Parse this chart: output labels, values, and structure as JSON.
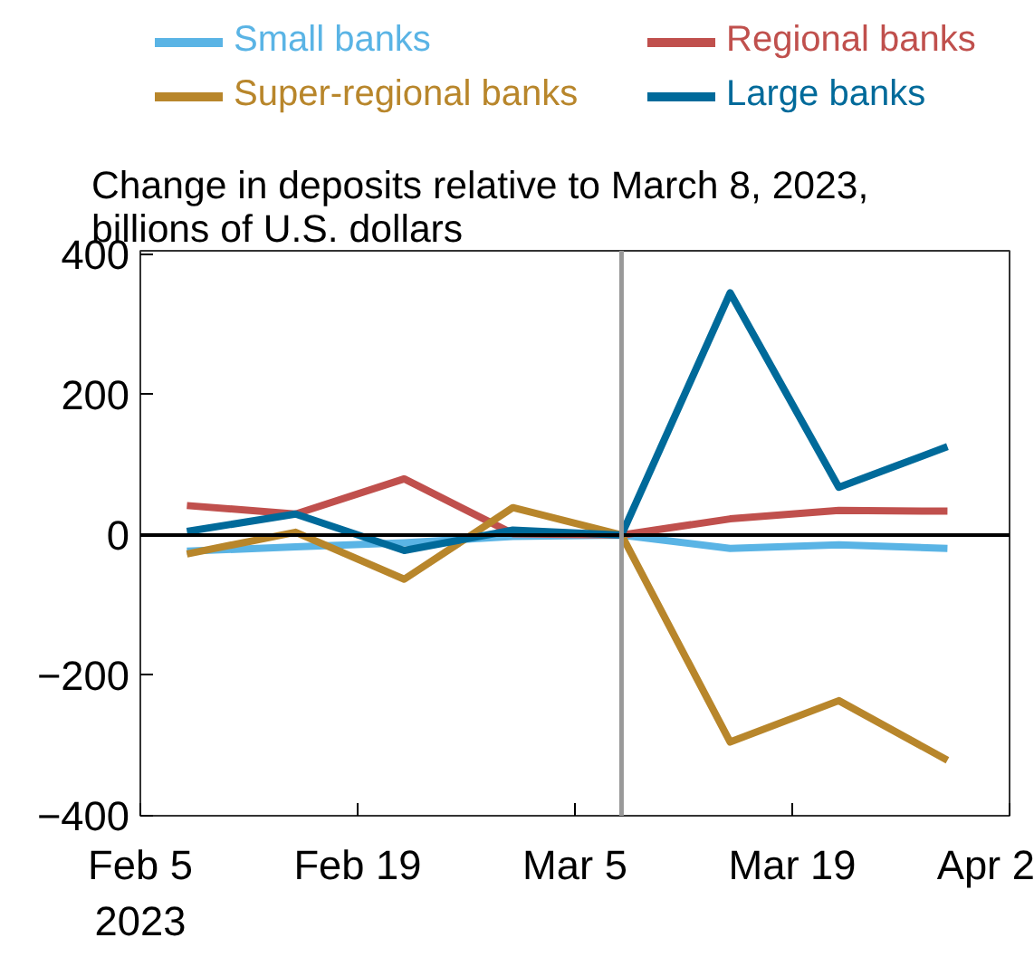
{
  "chart_data": {
    "type": "line",
    "title": "Change in deposits relative to March 8, 2023, billions of U.S. dollars",
    "x": [
      "2023-02-08",
      "2023-02-15",
      "2023-02-22",
      "2023-03-01",
      "2023-03-08",
      "2023-03-15",
      "2023-03-22",
      "2023-03-29"
    ],
    "series": [
      {
        "name": "Small banks",
        "color": "#5ab4e5",
        "values": [
          -23,
          -17,
          -11,
          -2,
          0,
          -19,
          -14,
          -19
        ]
      },
      {
        "name": "Regional banks",
        "color": "#c0504d",
        "values": [
          42,
          30,
          80,
          2,
          0,
          23,
          35,
          34
        ]
      },
      {
        "name": "Super-regional banks",
        "color": "#b8862b",
        "values": [
          -27,
          4,
          -63,
          39,
          0,
          -295,
          -236,
          -321
        ]
      },
      {
        "name": "Large banks",
        "color": "#006a9a",
        "values": [
          5,
          30,
          -22,
          7,
          0,
          345,
          68,
          126
        ]
      }
    ],
    "xlim": [
      "2023-02-05",
      "2023-04-02"
    ],
    "xticks": [
      {
        "value": "2023-02-05",
        "label": "Feb 5\n2023"
      },
      {
        "value": "2023-02-19",
        "label": "Feb 19"
      },
      {
        "value": "2023-03-05",
        "label": "Mar 5"
      },
      {
        "value": "2023-03-19",
        "label": "Mar 19"
      },
      {
        "value": "2023-04-02",
        "label": "Apr 2"
      }
    ],
    "ylim": [
      -400,
      405
    ],
    "yticks": [
      -400,
      -200,
      0,
      200,
      400
    ],
    "ref_lines": [
      {
        "axis": "y",
        "value": 0,
        "color": "#000000"
      },
      {
        "axis": "x",
        "value": "2023-03-08",
        "color": "#999999"
      }
    ],
    "grid": false,
    "legend": "top",
    "line_style": "solid",
    "marker": "none"
  }
}
